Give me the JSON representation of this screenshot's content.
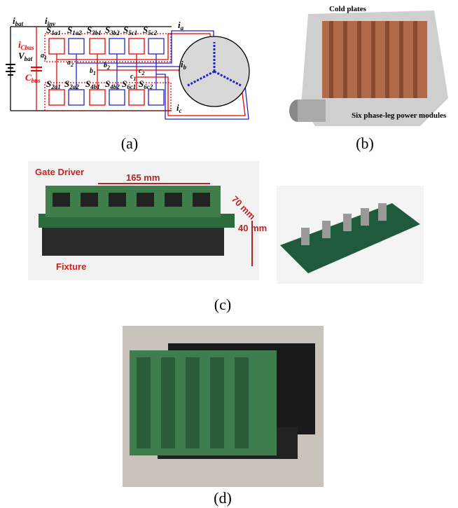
{
  "panel_a": {
    "caption": "(a)",
    "labels": [
      {
        "base": "i",
        "sub": "bat"
      },
      {
        "base": "i",
        "sub": "inv"
      },
      {
        "base": "i",
        "sub": "Cbus"
      },
      {
        "base": "C",
        "sub": "bus"
      },
      {
        "base": "V",
        "sub": "bat"
      },
      {
        "base": "S",
        "sub": "1a1"
      },
      {
        "base": "S",
        "sub": "1a2"
      },
      {
        "base": "S",
        "sub": "3b1"
      },
      {
        "base": "S",
        "sub": "3b2"
      },
      {
        "base": "S",
        "sub": "5c1"
      },
      {
        "base": "S",
        "sub": "5c2"
      },
      {
        "base": "S",
        "sub": "2a1"
      },
      {
        "base": "S",
        "sub": "2a2"
      },
      {
        "base": "S",
        "sub": "4b1"
      },
      {
        "base": "S",
        "sub": "4b2"
      },
      {
        "base": "S",
        "sub": "6c1"
      },
      {
        "base": "S",
        "sub": "6c2"
      },
      {
        "base": "a",
        "sub": "1"
      },
      {
        "base": "a",
        "sub": "2"
      },
      {
        "base": "b",
        "sub": "1"
      },
      {
        "base": "b",
        "sub": "2"
      },
      {
        "base": "c",
        "sub": "1"
      },
      {
        "base": "c",
        "sub": "2"
      },
      {
        "base": "i",
        "sub": "a"
      },
      {
        "base": "i",
        "sub": "b"
      },
      {
        "base": "i",
        "sub": "c"
      }
    ]
  },
  "panel_b": {
    "caption": "(b)",
    "labels": [
      "Cold plates",
      "Six phase-leg power modules"
    ]
  },
  "panel_c": {
    "caption": "(c)",
    "labels": [
      "Gate Driver",
      "165 mm",
      "70 mm",
      "40 mm",
      "Fixture"
    ]
  },
  "panel_d": {
    "caption": "(d)"
  }
}
